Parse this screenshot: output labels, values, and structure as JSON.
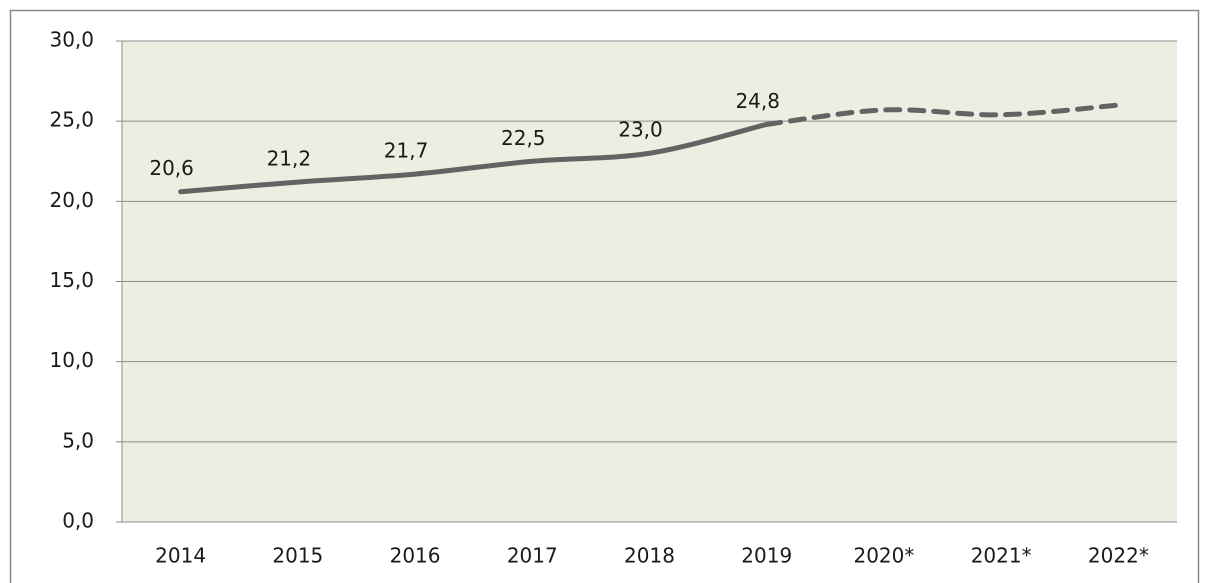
{
  "chart_data": {
    "type": "line",
    "categories": [
      "2014",
      "2015",
      "2016",
      "2017",
      "2018",
      "2019",
      "2020*",
      "2021*",
      "2022*"
    ],
    "series": [
      {
        "color": "#636363",
        "dashed": false,
        "values": [
          20.6,
          21.2,
          21.7,
          22.5,
          23.0,
          24.8,
          null,
          null,
          null
        ],
        "value_labels": [
          "20,6",
          "21,2",
          "21,7",
          "22,5",
          "23,0",
          "24,8",
          null,
          null,
          null
        ]
      },
      {
        "color": "#636363",
        "dashed": true,
        "values": [
          null,
          null,
          null,
          null,
          null,
          24.8,
          25.7,
          25.4,
          26.0
        ]
      }
    ],
    "ylim": [
      0,
      30
    ],
    "yticks": [
      {
        "value": 0,
        "label": "0,0"
      },
      {
        "value": 5,
        "label": "5,0"
      },
      {
        "value": 10,
        "label": "10,0"
      },
      {
        "value": 15,
        "label": "15,0"
      },
      {
        "value": 20,
        "label": "20,0"
      },
      {
        "value": 25,
        "label": "25,0"
      },
      {
        "value": 30,
        "label": "30,0"
      }
    ],
    "grid": true,
    "plot_background": "#ebeee0"
  }
}
